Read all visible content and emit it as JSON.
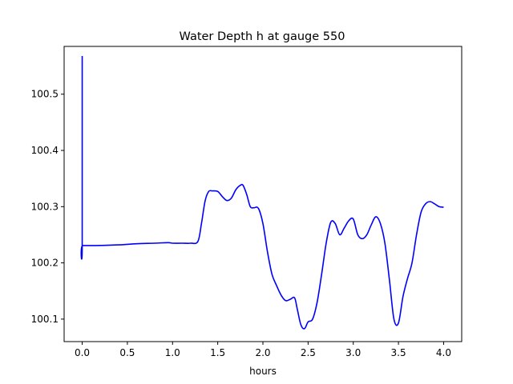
{
  "chart_data": {
    "type": "line",
    "title": "Water Depth h at gauge 550",
    "xlabel": "hours",
    "ylabel": "",
    "xlim": [
      -0.2,
      4.2
    ],
    "ylim": [
      100.06,
      100.585
    ],
    "xticks": [
      0.0,
      0.5,
      1.0,
      1.5,
      2.0,
      2.5,
      3.0,
      3.5,
      4.0
    ],
    "xtick_labels": [
      "0.0",
      "0.5",
      "1.0",
      "1.5",
      "2.0",
      "2.5",
      "3.0",
      "3.5",
      "4.0"
    ],
    "yticks": [
      100.1,
      100.2,
      100.3,
      100.4,
      100.5
    ],
    "ytick_labels": [
      "100.1",
      "100.2",
      "100.3",
      "100.4",
      "100.5"
    ],
    "grid": false,
    "series": [
      {
        "color": "#0000ff",
        "x": [
          0.0,
          0.0,
          0.005,
          0.2,
          0.4,
          0.6,
          0.8,
          0.95,
          1.0,
          1.1,
          1.2,
          1.28,
          1.32,
          1.36,
          1.4,
          1.44,
          1.5,
          1.55,
          1.6,
          1.65,
          1.7,
          1.75,
          1.78,
          1.82,
          1.86,
          1.9,
          1.95,
          2.0,
          2.05,
          2.1,
          2.15,
          2.2,
          2.25,
          2.3,
          2.35,
          2.38,
          2.42,
          2.46,
          2.5,
          2.55,
          2.6,
          2.65,
          2.7,
          2.75,
          2.8,
          2.85,
          2.9,
          2.95,
          3.0,
          3.05,
          3.1,
          3.15,
          3.2,
          3.25,
          3.3,
          3.35,
          3.4,
          3.45,
          3.5,
          3.55,
          3.6,
          3.65,
          3.7,
          3.75,
          3.8,
          3.85,
          3.9,
          3.95,
          4.0
        ],
        "y": [
          100.568,
          100.232,
          100.231,
          100.231,
          100.232,
          100.234,
          100.235,
          100.236,
          100.235,
          100.235,
          100.235,
          100.238,
          100.27,
          100.31,
          100.327,
          100.328,
          100.327,
          100.318,
          100.311,
          100.315,
          100.33,
          100.338,
          100.338,
          100.322,
          100.3,
          100.298,
          100.297,
          100.27,
          100.22,
          100.18,
          100.16,
          100.143,
          100.133,
          100.135,
          100.138,
          100.118,
          100.09,
          100.083,
          100.095,
          100.1,
          100.13,
          100.18,
          100.235,
          100.272,
          100.27,
          100.25,
          100.262,
          100.275,
          100.278,
          100.25,
          100.243,
          100.25,
          100.268,
          100.282,
          100.27,
          100.235,
          100.17,
          100.1,
          100.093,
          100.14,
          100.172,
          100.2,
          100.25,
          100.29,
          100.305,
          100.309,
          100.305,
          100.3,
          100.299
        ]
      }
    ]
  }
}
